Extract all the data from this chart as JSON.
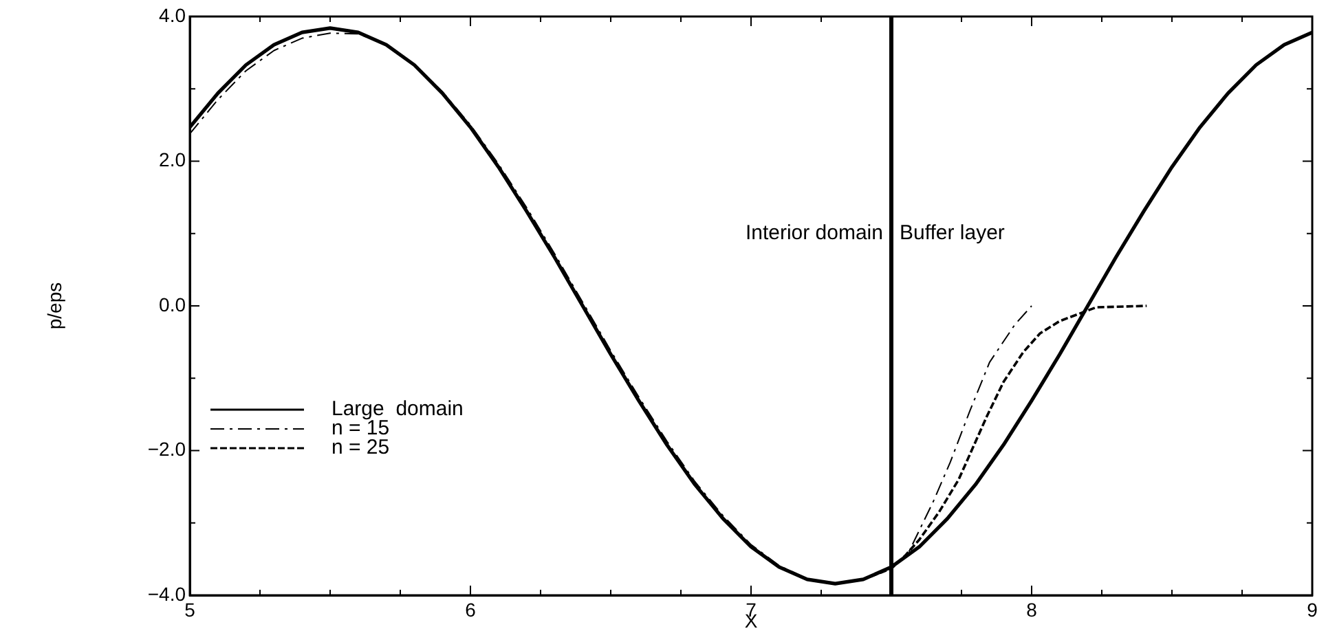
{
  "chart_data": {
    "type": "line",
    "xlabel": "X",
    "ylabel": "p/eps",
    "xlim": [
      5,
      9
    ],
    "ylim": [
      -4,
      4
    ],
    "xticks": [
      5,
      {
        "value": 5.25,
        "label": null
      },
      {
        "value": 5.5,
        "label": null
      },
      {
        "value": 5.75,
        "label": null
      },
      6,
      {
        "value": 6.25,
        "label": null
      },
      {
        "value": 6.5,
        "label": null
      },
      {
        "value": 6.75,
        "label": null
      },
      7,
      {
        "value": 7.25,
        "label": null
      },
      {
        "value": 7.5,
        "label": null
      },
      {
        "value": 7.75,
        "label": null
      },
      8,
      {
        "value": 8.25,
        "label": null
      },
      {
        "value": 8.5,
        "label": null
      },
      {
        "value": 8.75,
        "label": null
      },
      9
    ],
    "yticks": [
      {
        "value": -4,
        "label": "−4.0"
      },
      {
        "value": -3,
        "label": null
      },
      {
        "value": -2,
        "label": "−2.0"
      },
      {
        "value": -1,
        "label": null
      },
      {
        "value": 0,
        "label": "0.0"
      },
      {
        "value": 1,
        "label": null
      },
      {
        "value": 2,
        "label": "2.0"
      },
      {
        "value": 3,
        "label": null
      },
      {
        "value": 4,
        "label": "4.0"
      }
    ],
    "grid": false,
    "legend": "bottom left",
    "ref_lines": [
      {
        "axis": "x",
        "value": 7.5,
        "color": "#000000"
      }
    ],
    "annotations": [
      "Interior domain",
      "Buffer layer"
    ],
    "series": [
      {
        "name": "Large  domain",
        "color": "#000000",
        "line_style": "solid",
        "x": [
          5,
          5.1,
          5.2,
          5.3,
          5.4,
          5.5,
          5.6,
          5.7,
          5.8,
          5.9,
          6,
          6.1,
          6.2,
          6.3,
          6.4,
          6.5,
          6.6,
          6.7,
          6.8,
          6.9,
          7,
          7.1,
          7.2,
          7.3,
          7.4,
          7.5,
          7.6,
          7.7,
          7.8,
          7.9,
          8,
          8.1,
          8.2,
          8.3,
          8.4,
          8.5,
          8.6,
          8.7,
          8.8,
          8.9,
          9
        ],
        "values": [
          2.47,
          2.94,
          3.33,
          3.61,
          3.78,
          3.84,
          3.78,
          3.61,
          3.33,
          2.94,
          2.47,
          1.92,
          1.31,
          0.67,
          0,
          -0.67,
          -1.31,
          -1.92,
          -2.47,
          -2.94,
          -3.33,
          -3.61,
          -3.78,
          -3.84,
          -3.78,
          -3.61,
          -3.33,
          -2.94,
          -2.47,
          -1.92,
          -1.31,
          -0.67,
          0,
          0.67,
          1.31,
          1.92,
          2.47,
          2.94,
          3.33,
          3.61,
          3.78
        ]
      },
      {
        "name": "n = 15",
        "color": "#000000",
        "line_style": "dashdot",
        "x": [
          5,
          5.1,
          5.2,
          5.3,
          5.4,
          5.5,
          5.6,
          5.7,
          5.8,
          5.9,
          6,
          6.1,
          6.2,
          6.3,
          6.4,
          6.5,
          6.6,
          6.7,
          6.8,
          6.9,
          7,
          7.1,
          7.2,
          7.3,
          7.4,
          7.5,
          7.56,
          7.6,
          7.65,
          7.71,
          7.78,
          7.85,
          7.94,
          8
        ],
        "values": [
          2.38,
          2.85,
          3.25,
          3.53,
          3.7,
          3.77,
          3.76,
          3.61,
          3.34,
          2.96,
          2.5,
          1.96,
          1.36,
          0.72,
          0.05,
          -0.62,
          -1.26,
          -1.87,
          -2.43,
          -2.9,
          -3.3,
          -3.59,
          -3.77,
          -3.84,
          -3.79,
          -3.63,
          -3.42,
          -3.1,
          -2.7,
          -2.16,
          -1.45,
          -0.78,
          -0.26,
          0
        ]
      },
      {
        "name": "n = 25",
        "color": "#000000",
        "line_style": "dashed",
        "x": [
          5,
          5.1,
          5.2,
          5.3,
          5.4,
          5.5,
          5.6,
          5.7,
          5.8,
          5.9,
          6,
          6.1,
          6.2,
          6.3,
          6.4,
          6.5,
          6.6,
          6.7,
          6.8,
          6.9,
          7,
          7.1,
          7.2,
          7.3,
          7.4,
          7.5,
          7.55,
          7.6,
          7.67,
          7.74,
          7.84,
          7.9,
          7.97,
          8.03,
          8.1,
          8.23,
          8.41
        ],
        "values": [
          2.47,
          2.94,
          3.33,
          3.61,
          3.78,
          3.84,
          3.78,
          3.61,
          3.33,
          2.94,
          2.47,
          1.92,
          1.31,
          0.67,
          0,
          -0.67,
          -1.31,
          -1.92,
          -2.47,
          -2.94,
          -3.33,
          -3.61,
          -3.78,
          -3.84,
          -3.78,
          -3.63,
          -3.45,
          -3.23,
          -2.85,
          -2.4,
          -1.53,
          -1.05,
          -0.64,
          -0.38,
          -0.21,
          -0.02,
          0
        ]
      }
    ]
  }
}
